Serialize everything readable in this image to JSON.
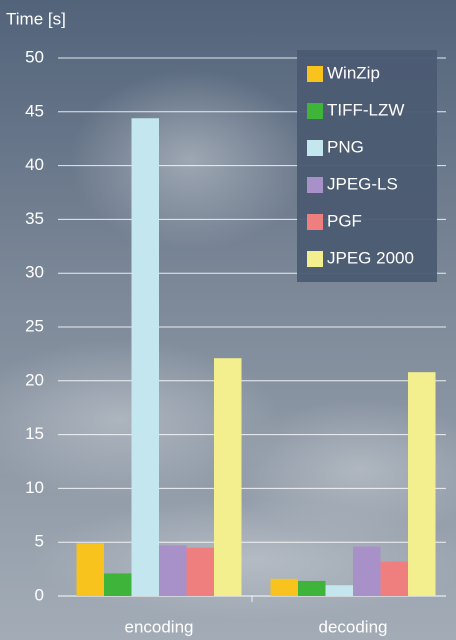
{
  "chart_data": {
    "type": "bar",
    "y_label": "Time [s]",
    "categories": [
      "encoding",
      "decoding"
    ],
    "series": [
      {
        "name": "WinZip",
        "color": "#f7c31c",
        "values": [
          4.9,
          1.6
        ]
      },
      {
        "name": "TIFF-LZW",
        "color": "#3fb43a",
        "values": [
          2.1,
          1.4
        ]
      },
      {
        "name": "PNG",
        "color": "#c4e6ef",
        "values": [
          44.4,
          1.0
        ]
      },
      {
        "name": "JPEG-LS",
        "color": "#a891c9",
        "values": [
          4.7,
          4.6
        ]
      },
      {
        "name": "PGF",
        "color": "#ef7f7f",
        "values": [
          4.5,
          3.2
        ]
      },
      {
        "name": "JPEG 2000",
        "color": "#f4ef8e",
        "values": [
          22.1,
          20.8
        ]
      }
    ],
    "ylim": [
      0,
      50
    ],
    "yticks": [
      0,
      5,
      10,
      15,
      20,
      25,
      30,
      35,
      40,
      45,
      50
    ],
    "grid": true,
    "legend": "top-right"
  }
}
